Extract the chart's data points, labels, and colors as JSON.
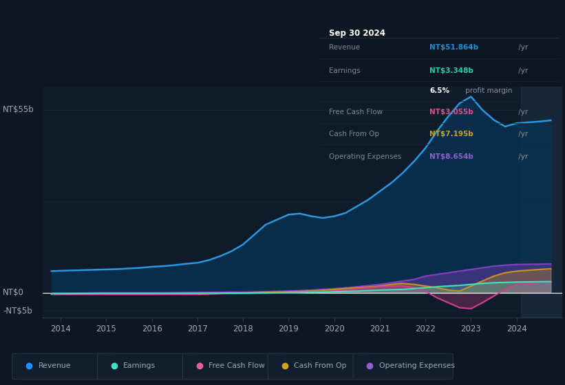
{
  "bg_color": "#0e1621",
  "plot_bg_color": "#0d1b2a",
  "ylabel_top": "NT$55b",
  "ylabel_zero": "NT$0",
  "ylabel_neg": "-NT$5b",
  "x_labels": [
    "2014",
    "2015",
    "2016",
    "2017",
    "2018",
    "2019",
    "2020",
    "2021",
    "2022",
    "2023",
    "2024"
  ],
  "legend_items": [
    "Revenue",
    "Earnings",
    "Free Cash Flow",
    "Cash From Op",
    "Operating Expenses"
  ],
  "legend_colors": [
    "#1e90ff",
    "#40e0c0",
    "#e060a0",
    "#d4a020",
    "#9060d0"
  ],
  "series": {
    "revenue": {
      "color": "#2899e0",
      "fill_color": "#0a3050",
      "x": [
        2013.8,
        2014.0,
        2014.25,
        2014.5,
        2014.75,
        2015.0,
        2015.25,
        2015.5,
        2015.75,
        2016.0,
        2016.25,
        2016.5,
        2016.75,
        2017.0,
        2017.25,
        2017.5,
        2017.75,
        2018.0,
        2018.25,
        2018.5,
        2018.75,
        2019.0,
        2019.25,
        2019.5,
        2019.75,
        2020.0,
        2020.25,
        2020.5,
        2020.75,
        2021.0,
        2021.25,
        2021.5,
        2021.75,
        2022.0,
        2022.25,
        2022.5,
        2022.75,
        2023.0,
        2023.25,
        2023.5,
        2023.75,
        2024.0,
        2024.5,
        2024.75
      ],
      "y": [
        6.5,
        6.6,
        6.7,
        6.8,
        6.9,
        7.0,
        7.1,
        7.3,
        7.5,
        7.8,
        8.0,
        8.3,
        8.7,
        9.0,
        9.8,
        11.0,
        12.5,
        14.5,
        17.5,
        20.5,
        22.0,
        23.5,
        23.8,
        23.0,
        22.5,
        23.0,
        24.0,
        26.0,
        28.0,
        30.5,
        33.0,
        36.0,
        39.5,
        43.5,
        48.5,
        53.0,
        57.0,
        59.0,
        55.0,
        52.0,
        50.0,
        51.0,
        51.5,
        51.864
      ]
    },
    "earnings": {
      "color": "#40e0c0",
      "x": [
        2013.8,
        2014.0,
        2015.0,
        2016.0,
        2017.0,
        2018.0,
        2019.0,
        2019.5,
        2020.0,
        2020.5,
        2021.0,
        2021.5,
        2022.0,
        2022.25,
        2022.5,
        2022.75,
        2023.0,
        2023.25,
        2023.5,
        2023.75,
        2024.0,
        2024.5,
        2024.75
      ],
      "y": [
        -0.3,
        -0.3,
        -0.2,
        -0.2,
        -0.2,
        -0.1,
        0.0,
        0.1,
        0.3,
        0.5,
        0.8,
        1.0,
        1.5,
        1.8,
        2.0,
        2.2,
        2.5,
        2.8,
        3.0,
        3.1,
        3.2,
        3.3,
        3.348
      ]
    },
    "free_cash_flow": {
      "color": "#d04090",
      "x": [
        2013.8,
        2014.0,
        2015.0,
        2016.0,
        2017.0,
        2017.5,
        2018.0,
        2018.5,
        2019.0,
        2019.5,
        2020.0,
        2020.25,
        2020.5,
        2020.75,
        2021.0,
        2021.25,
        2021.5,
        2021.75,
        2022.0,
        2022.25,
        2022.5,
        2022.75,
        2023.0,
        2023.25,
        2023.5,
        2023.75,
        2024.0,
        2024.5,
        2024.75
      ],
      "y": [
        -0.5,
        -0.5,
        -0.5,
        -0.5,
        -0.5,
        -0.3,
        -0.2,
        -0.1,
        0.0,
        0.2,
        0.5,
        0.8,
        1.2,
        1.5,
        1.8,
        2.0,
        2.0,
        1.5,
        0.5,
        -1.5,
        -3.0,
        -4.5,
        -4.8,
        -3.0,
        -1.0,
        1.0,
        2.5,
        3.0,
        3.055
      ]
    },
    "cash_from_op": {
      "color": "#c89020",
      "x": [
        2013.8,
        2014.0,
        2015.0,
        2016.0,
        2017.0,
        2018.0,
        2019.0,
        2019.5,
        2020.0,
        2020.5,
        2021.0,
        2021.25,
        2021.5,
        2021.75,
        2022.0,
        2022.25,
        2022.5,
        2022.75,
        2023.0,
        2023.25,
        2023.5,
        2023.75,
        2024.0,
        2024.5,
        2024.75
      ],
      "y": [
        -0.4,
        -0.4,
        -0.3,
        -0.3,
        -0.2,
        -0.1,
        0.3,
        0.5,
        1.0,
        1.5,
        2.0,
        2.5,
        2.8,
        2.5,
        2.0,
        1.5,
        0.8,
        0.5,
        2.0,
        3.5,
        5.0,
        6.0,
        6.5,
        7.0,
        7.195
      ]
    },
    "operating_expenses": {
      "color": "#8040c0",
      "x": [
        2013.8,
        2014.0,
        2015.0,
        2016.0,
        2017.0,
        2018.0,
        2019.0,
        2019.5,
        2020.0,
        2020.5,
        2021.0,
        2021.25,
        2021.5,
        2021.75,
        2022.0,
        2022.25,
        2022.5,
        2022.75,
        2023.0,
        2023.25,
        2023.5,
        2023.75,
        2024.0,
        2024.5,
        2024.75
      ],
      "y": [
        -0.2,
        -0.1,
        0.0,
        0.0,
        0.1,
        0.2,
        0.5,
        0.8,
        1.2,
        1.8,
        2.5,
        3.0,
        3.5,
        4.0,
        5.0,
        5.5,
        6.0,
        6.5,
        7.0,
        7.5,
        8.0,
        8.3,
        8.5,
        8.6,
        8.654
      ]
    }
  },
  "ylim": [
    -7.5,
    62
  ],
  "xlim": [
    2013.6,
    2025.0
  ],
  "grid_color": "#1a2535",
  "text_color": "#a0aab5",
  "tooltip_bg": "#050a0f",
  "tooltip": {
    "title": "Sep 30 2024",
    "revenue_label": "Revenue",
    "revenue_val": "NT$51.864b",
    "revenue_yr": " /yr",
    "earnings_label": "Earnings",
    "earnings_val": "NT$3.348b",
    "earnings_yr": " /yr",
    "margin_bold": "6.5%",
    "margin_rest": " profit margin",
    "fcf_label": "Free Cash Flow",
    "fcf_val": "NT$3.055b",
    "fcf_yr": " /yr",
    "cfo_label": "Cash From Op",
    "cfo_val": "NT$7.195b",
    "cfo_yr": " /yr",
    "opex_label": "Operating Expenses",
    "opex_val": "NT$8.654b",
    "opex_yr": " /yr"
  }
}
